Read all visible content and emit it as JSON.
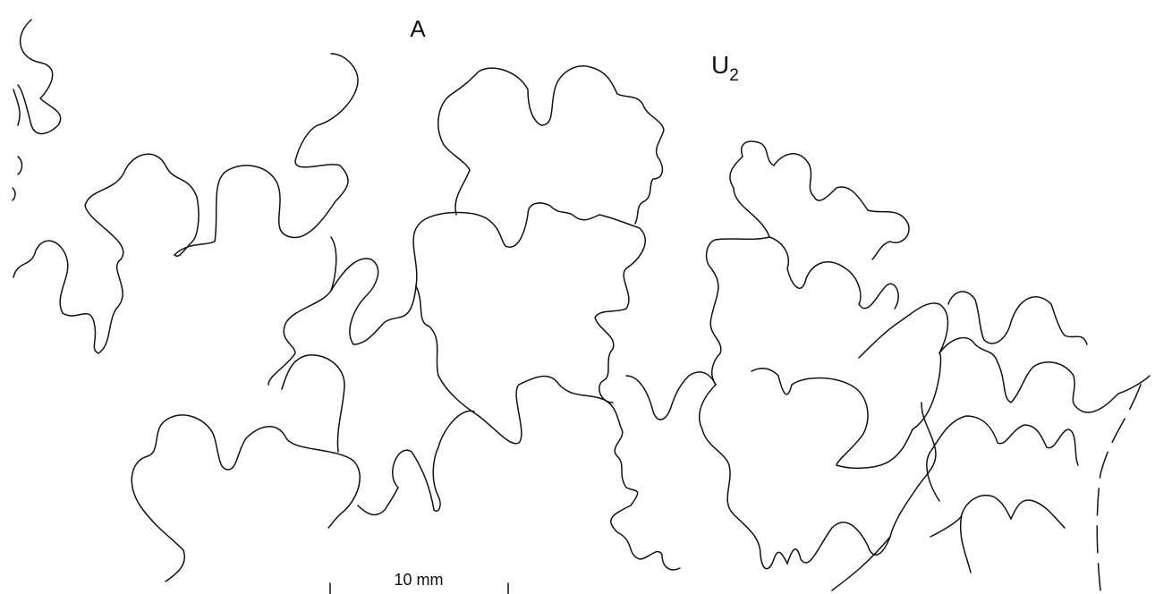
{
  "labels": {
    "a": "A",
    "u": {
      "main": "U",
      "sub": "2"
    }
  },
  "scale_bar": {
    "label": "10 mm"
  }
}
